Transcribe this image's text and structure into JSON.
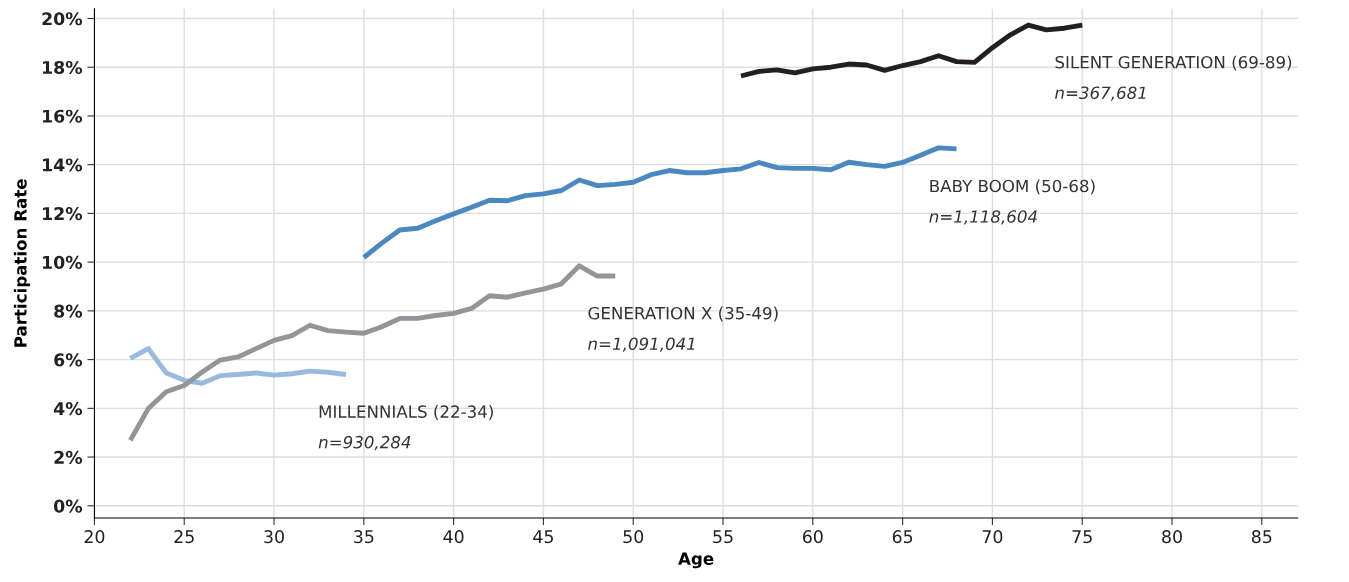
{
  "chart_data": {
    "type": "line",
    "xlabel": "Age",
    "ylabel": "Participation Rate",
    "xlim": [
      20,
      87
    ],
    "xticks": [
      20,
      25,
      30,
      35,
      40,
      45,
      50,
      55,
      60,
      65,
      70,
      75,
      80,
      85
    ],
    "ylim": [
      -0.5,
      20.4
    ],
    "yticks": [
      {
        "value": 0,
        "label": "0%"
      },
      {
        "value": 2,
        "label": "2%"
      },
      {
        "value": 4,
        "label": "4%"
      },
      {
        "value": 6,
        "label": "6%"
      },
      {
        "value": 8,
        "label": "8%"
      },
      {
        "value": 10,
        "label": "10%"
      },
      {
        "value": 12,
        "label": "12%"
      },
      {
        "value": 14,
        "label": "14%"
      },
      {
        "value": 16,
        "label": "16%"
      },
      {
        "value": 18,
        "label": "18%"
      },
      {
        "value": 20,
        "label": "20%"
      }
    ],
    "grid": true,
    "legend": false,
    "marker": "none",
    "line_style": "solid",
    "series": [
      {
        "name": "MILLENNIALS (22-34)",
        "color": "#9ab9de",
        "x": [
          22,
          23,
          24,
          25,
          26,
          27,
          28,
          29,
          30,
          31,
          32,
          33,
          34
        ],
        "values": [
          6.05,
          6.45,
          5.45,
          5.15,
          5.03,
          5.34,
          5.39,
          5.45,
          5.36,
          5.42,
          5.53,
          5.48,
          5.39
        ]
      },
      {
        "name": "GENERATION X (35-49)",
        "color": "#939598",
        "x": [
          22,
          23,
          24,
          25,
          26,
          27,
          28,
          29,
          30,
          31,
          32,
          33,
          34,
          35,
          36,
          37,
          38,
          39,
          40,
          41,
          42,
          43,
          44,
          45,
          46,
          47,
          48,
          49
        ],
        "values": [
          2.69,
          3.99,
          4.68,
          4.94,
          5.49,
          5.98,
          6.11,
          6.45,
          6.79,
          6.98,
          7.41,
          7.19,
          7.13,
          7.08,
          7.35,
          7.69,
          7.69,
          7.81,
          7.9,
          8.1,
          8.62,
          8.56,
          8.74,
          8.89,
          9.11,
          9.85,
          9.43,
          9.43
        ]
      },
      {
        "name": "BABY BOOM (50-68)",
        "color": "#4a88c2",
        "x": [
          35,
          36,
          37,
          38,
          39,
          40,
          41,
          42,
          43,
          44,
          45,
          46,
          47,
          48,
          49,
          50,
          51,
          52,
          53,
          54,
          55,
          56,
          57,
          58,
          59,
          60,
          61,
          62,
          63,
          64,
          65,
          66,
          67,
          68
        ],
        "values": [
          10.19,
          10.78,
          11.32,
          11.39,
          11.7,
          11.98,
          12.25,
          12.54,
          12.52,
          12.73,
          12.8,
          12.94,
          13.37,
          13.14,
          13.19,
          13.28,
          13.59,
          13.76,
          13.67,
          13.67,
          13.76,
          13.83,
          14.09,
          13.88,
          13.85,
          13.85,
          13.79,
          14.1,
          14.0,
          13.93,
          14.09,
          14.39,
          14.69,
          14.65
        ]
      },
      {
        "name": "SILENT GENERATION (69-89)",
        "color": "#231f20",
        "x": [
          56,
          57,
          58,
          59,
          60,
          61,
          62,
          63,
          64,
          65,
          66,
          67,
          68,
          69,
          70,
          71,
          72,
          73,
          74,
          75
        ],
        "values": [
          17.64,
          17.83,
          17.89,
          17.77,
          17.93,
          18.0,
          18.13,
          18.09,
          17.87,
          18.07,
          18.23,
          18.47,
          18.23,
          18.2,
          18.8,
          19.33,
          19.73,
          19.53,
          19.6,
          19.73
        ]
      }
    ],
    "annotations": [
      "n=930,284",
      "n=1,091,041",
      "n=1,118,604",
      "n=367,681"
    ]
  }
}
